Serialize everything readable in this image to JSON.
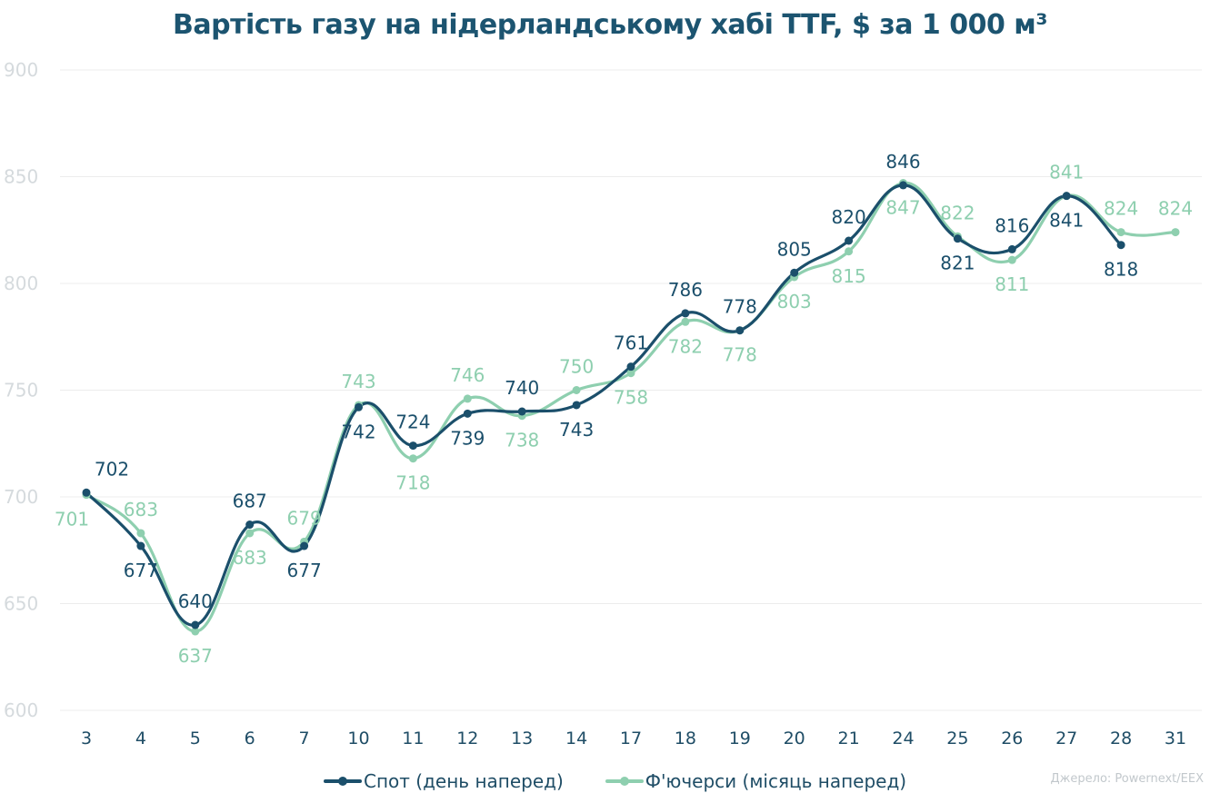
{
  "chart_data": {
    "type": "line",
    "title": "Вартість газу на нідерландському хабі TTF, $ за 1 000 м³",
    "categories": [
      "3",
      "4",
      "5",
      "6",
      "7",
      "10",
      "11",
      "12",
      "13",
      "14",
      "17",
      "18",
      "19",
      "20",
      "21",
      "24",
      "25",
      "26",
      "27",
      "28",
      "31"
    ],
    "ylim": [
      600,
      900
    ],
    "yticks": [
      600,
      650,
      700,
      750,
      800,
      850,
      900
    ],
    "grid": true,
    "legend_position": "bottom",
    "series": [
      {
        "name": "Спот (день наперед)",
        "color": "#1b4f6b",
        "values": [
          702,
          677,
          640,
          687,
          677,
          742,
          724,
          739,
          740,
          743,
          761,
          786,
          778,
          805,
          820,
          846,
          821,
          816,
          841,
          818,
          null
        ],
        "label_pos": [
          "above",
          "below",
          "above",
          "above",
          "below",
          "below",
          "above",
          "below",
          "above",
          "below",
          "above",
          "above",
          "above",
          "above",
          "above",
          "above",
          "below",
          "above",
          "below",
          "below",
          null
        ]
      },
      {
        "name": "Ф'ючерси (місяць наперед)",
        "color": "#8ecfaf",
        "values": [
          701,
          683,
          637,
          683,
          679,
          743,
          718,
          746,
          738,
          750,
          758,
          782,
          778,
          803,
          815,
          847,
          822,
          811,
          841,
          824,
          824
        ],
        "label_pos": [
          "below",
          "above",
          "below",
          "below",
          "above",
          "above",
          "below",
          "above",
          "below",
          "above",
          "below",
          "below",
          "below",
          "below",
          "below",
          "below",
          "above",
          "below",
          "above",
          "above",
          "above"
        ]
      }
    ],
    "source": "Джерело: Powernext/EEX"
  }
}
